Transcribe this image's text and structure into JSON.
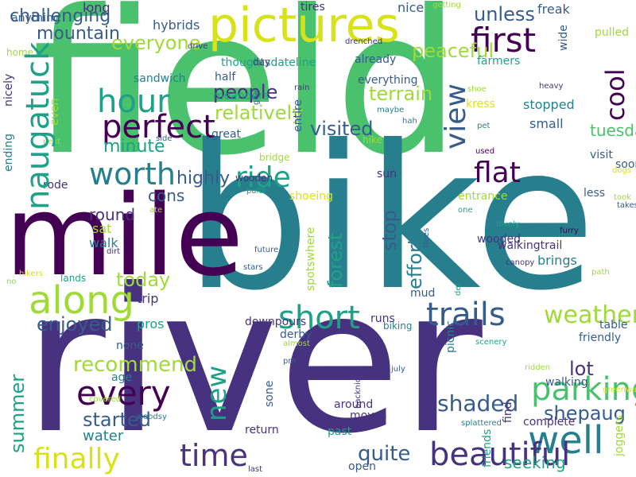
{
  "palette": {
    "yellow": "#d8e219",
    "lime": "#a0da39",
    "green": "#4ac16d",
    "teal": "#1fa187",
    "blue": "#277f8e",
    "slate": "#365c8d",
    "indigo": "#46327e",
    "purple": "#440154"
  },
  "words": [
    "field",
    "bike",
    "river",
    "mile",
    "pictures",
    "along",
    "every",
    "well",
    "parking",
    "trails",
    "short",
    "hour",
    "perfect",
    "first",
    "worth",
    "ride",
    "time",
    "flat",
    "finally",
    "beautiful",
    "shaded",
    "weather",
    "lot",
    "shepaug",
    "quite",
    "people",
    "visited",
    "today",
    "enjoyed",
    "recommend",
    "started",
    "water",
    "seeking",
    "everyone",
    "terrain",
    "unless",
    "peaceful",
    "minute",
    "relatively",
    "mountain",
    "challenging",
    "highly",
    "cons",
    "round",
    "sat",
    "walk",
    "trip",
    "pros",
    "none",
    "age",
    "hybrids",
    "long",
    "tires",
    "nice",
    "freak",
    "anything",
    "home",
    "sandwich",
    "half",
    "thoughtsdateline",
    "meanders",
    "great",
    "everything",
    "already",
    "farmers",
    "pulled",
    "day",
    "drive",
    "rain",
    "maybe",
    "hah",
    "kress",
    "stopped",
    "small",
    "tuesday",
    "soon",
    "visit",
    "less",
    "took",
    "takes",
    "dogs",
    "shoeing",
    "entrance",
    "sun",
    "hike",
    "bridge",
    "rode",
    "paltz",
    "ate",
    "side",
    "next",
    "used",
    "pet",
    "shoe",
    "heavy",
    "drenched",
    "getting",
    "wooden",
    "one",
    "lovely",
    "wooded",
    "walkingtrail",
    "brings",
    "furry",
    "canopy",
    "path",
    "future",
    "stars",
    "dirt",
    "hikers",
    "no",
    "lands",
    "runs",
    "mud",
    "derby",
    "downpours",
    "biking",
    "table",
    "friendly",
    "around",
    "moves",
    "past",
    "return",
    "open",
    "walking",
    "complete",
    "greenway",
    "ridden",
    "splattered",
    "pm",
    "almost",
    "july",
    "covered",
    "woodsy",
    "last",
    "scenery",
    "naugatuck",
    "view",
    "cool",
    "new",
    "forest",
    "stop",
    "effort",
    "summer",
    "nicely",
    "even",
    "ending",
    "wide",
    "give",
    "entire",
    "def",
    "trees",
    "spotswhere",
    "picnic",
    "sone",
    "bikers",
    "friends",
    "find",
    "joggers",
    "backnice"
  ]
}
